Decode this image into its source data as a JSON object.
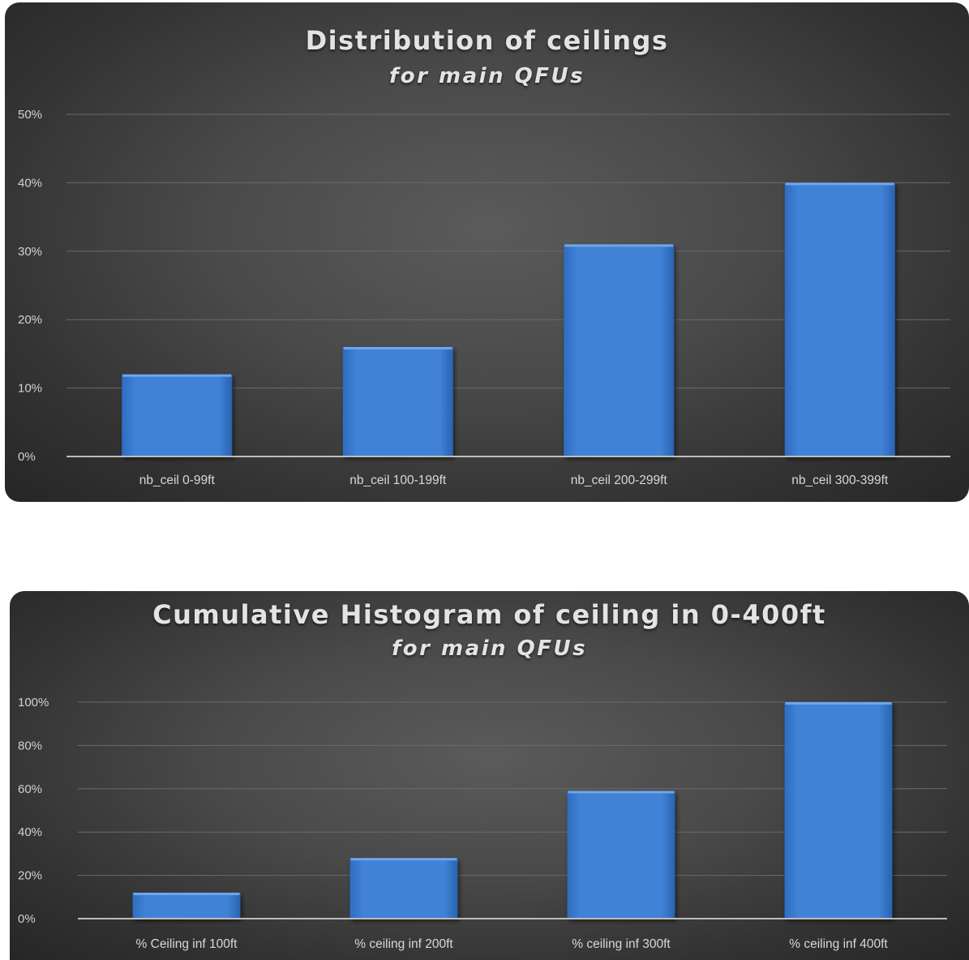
{
  "colors": {
    "bar": "#3f82d6",
    "bar_top": "#6fa6ea",
    "grid": "#6a6a6a",
    "axis": "#bdbdbd"
  },
  "chart_data": [
    {
      "type": "bar",
      "title": "Distribution of ceilings",
      "subtitle": "for main QFUs",
      "categories": [
        "nb_ceil 0-99ft",
        "nb_ceil 100-199ft",
        "nb_ceil 200-299ft",
        "nb_ceil 300-399ft"
      ],
      "values": [
        12,
        16,
        31,
        40
      ],
      "yticks": [
        "0%",
        "10%",
        "20%",
        "30%",
        "40%",
        "50%"
      ],
      "ylim": [
        0,
        50
      ],
      "unit": "%",
      "grid": true,
      "legend": "none"
    },
    {
      "type": "bar",
      "title": "Cumulative Histogram of ceiling in 0-400ft",
      "subtitle": "for main QFUs",
      "categories": [
        "% Ceiling inf 100ft",
        "% ceiling inf 200ft",
        "% ceiling inf 300ft",
        "% ceiling inf 400ft"
      ],
      "values": [
        12,
        28,
        59,
        100
      ],
      "yticks": [
        "0%",
        "20%",
        "40%",
        "60%",
        "80%",
        "100%"
      ],
      "ylim": [
        0,
        100
      ],
      "unit": "%",
      "grid": true,
      "legend": "none"
    }
  ]
}
